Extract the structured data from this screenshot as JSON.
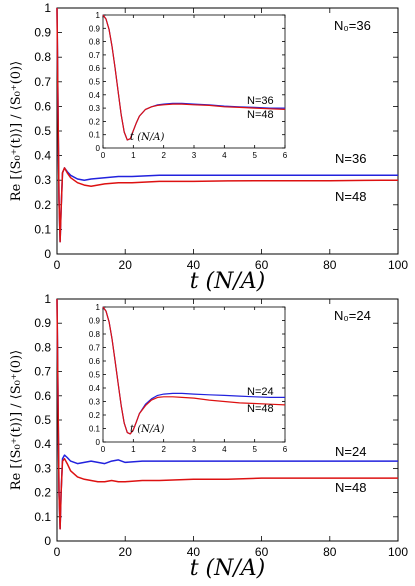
{
  "colors": {
    "n36": "#2222dd",
    "n48": "#dd1111"
  },
  "chart_data": [
    {
      "type": "line",
      "xlabel": "t (N/A)",
      "ylabel": "Re [⟨S₀⁺(t)⟩] / ⟨S₀⁺(0)⟩",
      "xlim": [
        0,
        100
      ],
      "ylim": [
        0,
        1
      ],
      "xticks": [
        "0",
        "20",
        "40",
        "60",
        "80",
        "100"
      ],
      "yticks": [
        "0",
        "0.1",
        "0.2",
        "0.3",
        "0.4",
        "0.5",
        "0.6",
        "0.7",
        "0.8",
        "0.9",
        "1"
      ],
      "corner_label": "N₀=36",
      "series": [
        {
          "name": "N=36",
          "color": "#2222dd",
          "x": [
            0,
            0.3,
            0.6,
            0.9,
            1.2,
            1.6,
            2.2,
            3,
            4,
            6,
            8,
            10,
            14,
            18,
            22,
            30,
            40,
            50,
            60,
            70,
            80,
            90,
            100
          ],
          "y": [
            1,
            0.6,
            0.22,
            0.05,
            0.18,
            0.33,
            0.35,
            0.335,
            0.32,
            0.305,
            0.3,
            0.305,
            0.31,
            0.315,
            0.315,
            0.32,
            0.32,
            0.32,
            0.32,
            0.32,
            0.32,
            0.32,
            0.32
          ]
        },
        {
          "name": "N=48",
          "color": "#dd1111",
          "x": [
            0,
            0.3,
            0.6,
            0.9,
            1.2,
            1.6,
            2.2,
            3,
            4,
            6,
            8,
            10,
            14,
            18,
            22,
            30,
            40,
            50,
            60,
            70,
            80,
            90,
            100
          ],
          "y": [
            1,
            0.6,
            0.22,
            0.05,
            0.18,
            0.33,
            0.35,
            0.33,
            0.31,
            0.29,
            0.28,
            0.275,
            0.285,
            0.29,
            0.29,
            0.295,
            0.295,
            0.297,
            0.298,
            0.298,
            0.298,
            0.299,
            0.3
          ]
        }
      ],
      "labels": [
        "N=36",
        "N=48"
      ],
      "inset": {
        "xlabel": "t (N/A)",
        "xlim": [
          0,
          6
        ],
        "ylim": [
          0,
          1
        ],
        "xticks": [
          "0",
          "1",
          "2",
          "3",
          "4",
          "5",
          "6"
        ],
        "yticks": [
          "0",
          "0.1",
          "0.2",
          "0.3",
          "0.4",
          "0.5",
          "0.6",
          "0.7",
          "0.8",
          "0.9",
          "1"
        ],
        "labels": [
          "N=36",
          "N=48"
        ],
        "series": [
          {
            "name": "N=36",
            "color": "#2222dd",
            "x": [
              0,
              0.1,
              0.2,
              0.3,
              0.4,
              0.5,
              0.6,
              0.7,
              0.8,
              0.9,
              1.0,
              1.1,
              1.2,
              1.4,
              1.6,
              1.8,
              2.0,
              2.3,
              2.6,
              3,
              3.5,
              4,
              4.5,
              5,
              5.5,
              6
            ],
            "y": [
              1,
              0.97,
              0.89,
              0.76,
              0.6,
              0.42,
              0.25,
              0.12,
              0.06,
              0.07,
              0.13,
              0.19,
              0.24,
              0.29,
              0.31,
              0.325,
              0.33,
              0.335,
              0.335,
              0.33,
              0.325,
              0.315,
              0.31,
              0.305,
              0.3,
              0.3
            ]
          },
          {
            "name": "N=48",
            "color": "#dd1111",
            "x": [
              0,
              0.1,
              0.2,
              0.3,
              0.4,
              0.5,
              0.6,
              0.7,
              0.8,
              0.9,
              1.0,
              1.1,
              1.2,
              1.4,
              1.6,
              1.8,
              2.0,
              2.3,
              2.6,
              3,
              3.5,
              4,
              4.5,
              5,
              5.5,
              6
            ],
            "y": [
              1,
              0.97,
              0.89,
              0.76,
              0.6,
              0.42,
              0.25,
              0.12,
              0.06,
              0.07,
              0.13,
              0.19,
              0.24,
              0.29,
              0.31,
              0.32,
              0.325,
              0.33,
              0.33,
              0.325,
              0.32,
              0.31,
              0.305,
              0.3,
              0.295,
              0.29
            ]
          }
        ]
      }
    },
    {
      "type": "line",
      "xlabel": "t (N/A)",
      "ylabel": "Re [⟨S₀⁺(t)⟩] / ⟨S₀⁺(0)⟩",
      "xlim": [
        0,
        100
      ],
      "ylim": [
        0,
        1
      ],
      "xticks": [
        "0",
        "20",
        "40",
        "60",
        "80",
        "100"
      ],
      "yticks": [
        "0",
        "0.1",
        "0.2",
        "0.3",
        "0.4",
        "0.5",
        "0.6",
        "0.7",
        "0.8",
        "0.9",
        "1"
      ],
      "corner_label": "N₀=24",
      "series": [
        {
          "name": "N=24",
          "color": "#2222dd",
          "x": [
            0,
            0.3,
            0.6,
            0.9,
            1.2,
            1.6,
            2.2,
            3,
            4,
            6,
            8,
            10,
            12,
            14,
            16,
            18,
            20,
            25,
            30,
            40,
            50,
            60,
            70,
            80,
            90,
            100
          ],
          "y": [
            1,
            0.6,
            0.2,
            0.05,
            0.2,
            0.34,
            0.355,
            0.345,
            0.33,
            0.32,
            0.325,
            0.33,
            0.325,
            0.32,
            0.33,
            0.335,
            0.325,
            0.33,
            0.33,
            0.33,
            0.33,
            0.33,
            0.33,
            0.33,
            0.33,
            0.33
          ]
        },
        {
          "name": "N=48",
          "color": "#dd1111",
          "x": [
            0,
            0.3,
            0.6,
            0.9,
            1.2,
            1.6,
            2.2,
            3,
            4,
            6,
            8,
            10,
            12,
            14,
            16,
            18,
            20,
            25,
            30,
            40,
            50,
            60,
            70,
            80,
            90,
            100
          ],
          "y": [
            1,
            0.6,
            0.2,
            0.05,
            0.2,
            0.33,
            0.34,
            0.32,
            0.29,
            0.265,
            0.255,
            0.25,
            0.245,
            0.245,
            0.25,
            0.245,
            0.245,
            0.25,
            0.25,
            0.255,
            0.255,
            0.26,
            0.26,
            0.26,
            0.26,
            0.26
          ]
        }
      ],
      "labels": [
        "N=24",
        "N=48"
      ],
      "inset": {
        "xlabel": "t (N/A)",
        "xlim": [
          0,
          6
        ],
        "ylim": [
          0,
          1
        ],
        "xticks": [
          "0",
          "1",
          "2",
          "3",
          "4",
          "5",
          "6"
        ],
        "yticks": [
          "0",
          "0.1",
          "0.2",
          "0.3",
          "0.4",
          "0.5",
          "0.6",
          "0.7",
          "0.8",
          "0.9",
          "1"
        ],
        "labels": [
          "N=24",
          "N=48"
        ],
        "series": [
          {
            "name": "N=24",
            "color": "#2222dd",
            "x": [
              0,
              0.1,
              0.2,
              0.3,
              0.4,
              0.5,
              0.6,
              0.7,
              0.8,
              0.9,
              1.0,
              1.1,
              1.2,
              1.4,
              1.6,
              1.8,
              2.0,
              2.3,
              2.6,
              3,
              3.5,
              4,
              4.5,
              5,
              5.5,
              6
            ],
            "y": [
              1,
              0.97,
              0.89,
              0.76,
              0.6,
              0.43,
              0.27,
              0.14,
              0.07,
              0.06,
              0.09,
              0.15,
              0.21,
              0.28,
              0.32,
              0.345,
              0.355,
              0.36,
              0.36,
              0.355,
              0.35,
              0.345,
              0.34,
              0.335,
              0.33,
              0.33
            ]
          },
          {
            "name": "N=48",
            "color": "#dd1111",
            "x": [
              0,
              0.1,
              0.2,
              0.3,
              0.4,
              0.5,
              0.6,
              0.7,
              0.8,
              0.9,
              1.0,
              1.1,
              1.2,
              1.4,
              1.6,
              1.8,
              2.0,
              2.3,
              2.6,
              3,
              3.5,
              4,
              4.5,
              5,
              5.5,
              6
            ],
            "y": [
              1,
              0.97,
              0.89,
              0.76,
              0.6,
              0.43,
              0.27,
              0.14,
              0.07,
              0.06,
              0.09,
              0.15,
              0.21,
              0.27,
              0.31,
              0.33,
              0.335,
              0.335,
              0.33,
              0.325,
              0.31,
              0.3,
              0.29,
              0.285,
              0.28,
              0.275
            ]
          }
        ]
      }
    }
  ]
}
